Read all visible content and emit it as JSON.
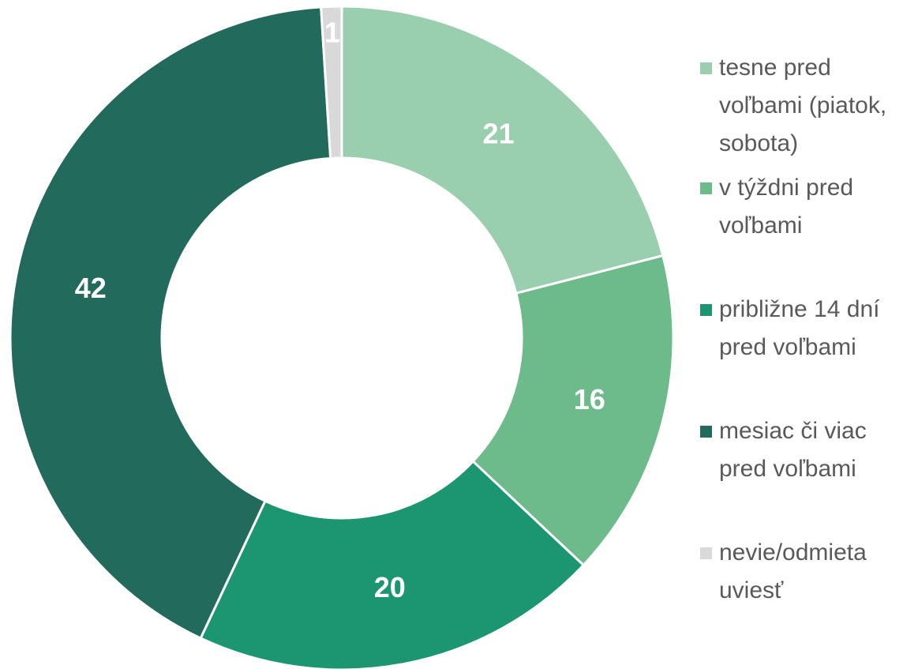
{
  "chart_data": {
    "type": "donut",
    "categories": [
      "tesne pred voľbami (piatok, sobota)",
      "v týždni pred voľbami",
      "približne 14 dní pred voľbami",
      "mesiac či viac pred voľbami",
      "nevie/odmieta uviesť"
    ],
    "values": [
      21,
      16,
      20,
      42,
      1
    ],
    "colors": [
      "#99cfae",
      "#6dbb8b",
      "#1b9670",
      "#226b5c",
      "#d9d9d9"
    ],
    "legend": "right"
  }
}
